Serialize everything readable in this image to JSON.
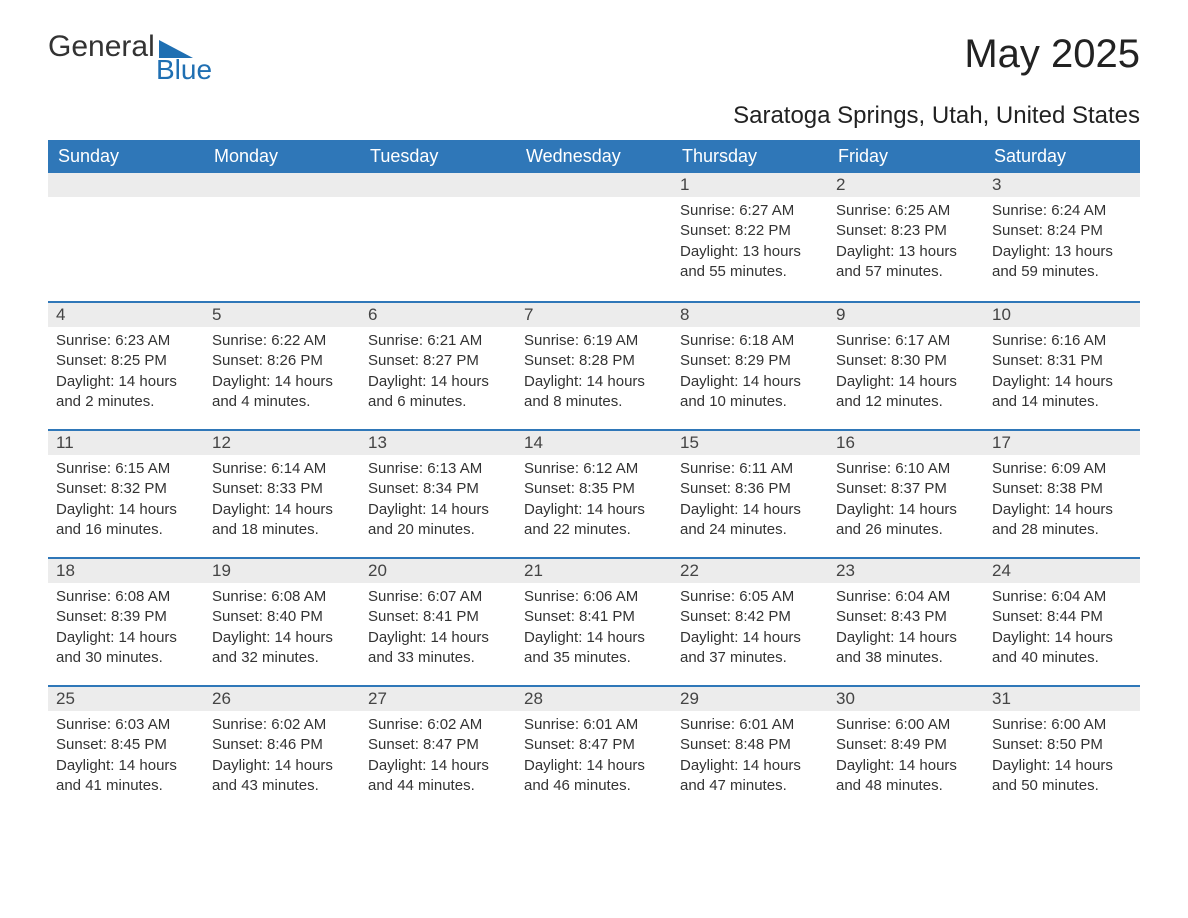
{
  "brand": {
    "general": "General",
    "blue": "Blue",
    "accent": "#1f6fb2"
  },
  "title": "May 2025",
  "location": "Saratoga Springs, Utah, United States",
  "colors": {
    "header_bg": "#2f77b8",
    "header_text": "#ffffff",
    "daynum_bg": "#ececec",
    "week_border": "#2f77b8",
    "text": "#333333",
    "background": "#ffffff"
  },
  "weekdays": [
    "Sunday",
    "Monday",
    "Tuesday",
    "Wednesday",
    "Thursday",
    "Friday",
    "Saturday"
  ],
  "weeks": [
    [
      null,
      null,
      null,
      null,
      {
        "n": "1",
        "sr": "Sunrise: 6:27 AM",
        "ss": "Sunset: 8:22 PM",
        "dl": "Daylight: 13 hours and 55 minutes."
      },
      {
        "n": "2",
        "sr": "Sunrise: 6:25 AM",
        "ss": "Sunset: 8:23 PM",
        "dl": "Daylight: 13 hours and 57 minutes."
      },
      {
        "n": "3",
        "sr": "Sunrise: 6:24 AM",
        "ss": "Sunset: 8:24 PM",
        "dl": "Daylight: 13 hours and 59 minutes."
      }
    ],
    [
      {
        "n": "4",
        "sr": "Sunrise: 6:23 AM",
        "ss": "Sunset: 8:25 PM",
        "dl": "Daylight: 14 hours and 2 minutes."
      },
      {
        "n": "5",
        "sr": "Sunrise: 6:22 AM",
        "ss": "Sunset: 8:26 PM",
        "dl": "Daylight: 14 hours and 4 minutes."
      },
      {
        "n": "6",
        "sr": "Sunrise: 6:21 AM",
        "ss": "Sunset: 8:27 PM",
        "dl": "Daylight: 14 hours and 6 minutes."
      },
      {
        "n": "7",
        "sr": "Sunrise: 6:19 AM",
        "ss": "Sunset: 8:28 PM",
        "dl": "Daylight: 14 hours and 8 minutes."
      },
      {
        "n": "8",
        "sr": "Sunrise: 6:18 AM",
        "ss": "Sunset: 8:29 PM",
        "dl": "Daylight: 14 hours and 10 minutes."
      },
      {
        "n": "9",
        "sr": "Sunrise: 6:17 AM",
        "ss": "Sunset: 8:30 PM",
        "dl": "Daylight: 14 hours and 12 minutes."
      },
      {
        "n": "10",
        "sr": "Sunrise: 6:16 AM",
        "ss": "Sunset: 8:31 PM",
        "dl": "Daylight: 14 hours and 14 minutes."
      }
    ],
    [
      {
        "n": "11",
        "sr": "Sunrise: 6:15 AM",
        "ss": "Sunset: 8:32 PM",
        "dl": "Daylight: 14 hours and 16 minutes."
      },
      {
        "n": "12",
        "sr": "Sunrise: 6:14 AM",
        "ss": "Sunset: 8:33 PM",
        "dl": "Daylight: 14 hours and 18 minutes."
      },
      {
        "n": "13",
        "sr": "Sunrise: 6:13 AM",
        "ss": "Sunset: 8:34 PM",
        "dl": "Daylight: 14 hours and 20 minutes."
      },
      {
        "n": "14",
        "sr": "Sunrise: 6:12 AM",
        "ss": "Sunset: 8:35 PM",
        "dl": "Daylight: 14 hours and 22 minutes."
      },
      {
        "n": "15",
        "sr": "Sunrise: 6:11 AM",
        "ss": "Sunset: 8:36 PM",
        "dl": "Daylight: 14 hours and 24 minutes."
      },
      {
        "n": "16",
        "sr": "Sunrise: 6:10 AM",
        "ss": "Sunset: 8:37 PM",
        "dl": "Daylight: 14 hours and 26 minutes."
      },
      {
        "n": "17",
        "sr": "Sunrise: 6:09 AM",
        "ss": "Sunset: 8:38 PM",
        "dl": "Daylight: 14 hours and 28 minutes."
      }
    ],
    [
      {
        "n": "18",
        "sr": "Sunrise: 6:08 AM",
        "ss": "Sunset: 8:39 PM",
        "dl": "Daylight: 14 hours and 30 minutes."
      },
      {
        "n": "19",
        "sr": "Sunrise: 6:08 AM",
        "ss": "Sunset: 8:40 PM",
        "dl": "Daylight: 14 hours and 32 minutes."
      },
      {
        "n": "20",
        "sr": "Sunrise: 6:07 AM",
        "ss": "Sunset: 8:41 PM",
        "dl": "Daylight: 14 hours and 33 minutes."
      },
      {
        "n": "21",
        "sr": "Sunrise: 6:06 AM",
        "ss": "Sunset: 8:41 PM",
        "dl": "Daylight: 14 hours and 35 minutes."
      },
      {
        "n": "22",
        "sr": "Sunrise: 6:05 AM",
        "ss": "Sunset: 8:42 PM",
        "dl": "Daylight: 14 hours and 37 minutes."
      },
      {
        "n": "23",
        "sr": "Sunrise: 6:04 AM",
        "ss": "Sunset: 8:43 PM",
        "dl": "Daylight: 14 hours and 38 minutes."
      },
      {
        "n": "24",
        "sr": "Sunrise: 6:04 AM",
        "ss": "Sunset: 8:44 PM",
        "dl": "Daylight: 14 hours and 40 minutes."
      }
    ],
    [
      {
        "n": "25",
        "sr": "Sunrise: 6:03 AM",
        "ss": "Sunset: 8:45 PM",
        "dl": "Daylight: 14 hours and 41 minutes."
      },
      {
        "n": "26",
        "sr": "Sunrise: 6:02 AM",
        "ss": "Sunset: 8:46 PM",
        "dl": "Daylight: 14 hours and 43 minutes."
      },
      {
        "n": "27",
        "sr": "Sunrise: 6:02 AM",
        "ss": "Sunset: 8:47 PM",
        "dl": "Daylight: 14 hours and 44 minutes."
      },
      {
        "n": "28",
        "sr": "Sunrise: 6:01 AM",
        "ss": "Sunset: 8:47 PM",
        "dl": "Daylight: 14 hours and 46 minutes."
      },
      {
        "n": "29",
        "sr": "Sunrise: 6:01 AM",
        "ss": "Sunset: 8:48 PM",
        "dl": "Daylight: 14 hours and 47 minutes."
      },
      {
        "n": "30",
        "sr": "Sunrise: 6:00 AM",
        "ss": "Sunset: 8:49 PM",
        "dl": "Daylight: 14 hours and 48 minutes."
      },
      {
        "n": "31",
        "sr": "Sunrise: 6:00 AM",
        "ss": "Sunset: 8:50 PM",
        "dl": "Daylight: 14 hours and 50 minutes."
      }
    ]
  ]
}
